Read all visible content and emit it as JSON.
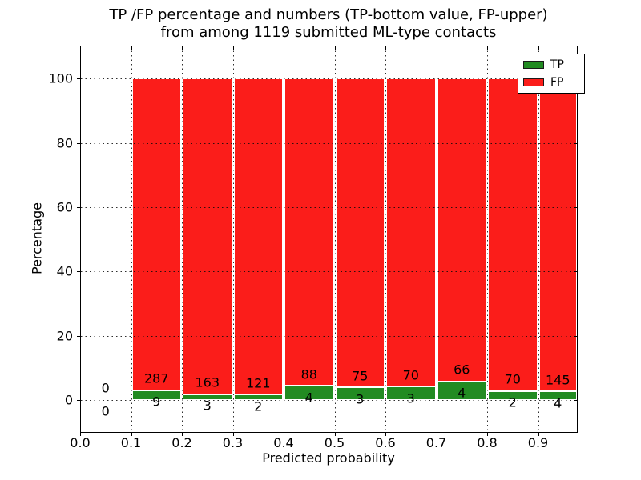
{
  "title": {
    "line1": "TP /FP percentage and numbers (TP-bottom value, FP-upper)",
    "line2": "from among 1119 submitted ML-type contacts"
  },
  "axes": {
    "ylabel": "Percentage",
    "xlabel": "Predicted probability",
    "yticks": [
      {
        "value": 0,
        "label": "0"
      },
      {
        "value": 20,
        "label": "20"
      },
      {
        "value": 40,
        "label": "40"
      },
      {
        "value": 60,
        "label": "60"
      },
      {
        "value": 80,
        "label": "80"
      },
      {
        "value": 100,
        "label": "100"
      }
    ],
    "xticks": [
      {
        "value": 0.0,
        "label": "0.0"
      },
      {
        "value": 0.1,
        "label": "0.1"
      },
      {
        "value": 0.2,
        "label": "0.2"
      },
      {
        "value": 0.3,
        "label": "0.3"
      },
      {
        "value": 0.4,
        "label": "0.4"
      },
      {
        "value": 0.5,
        "label": "0.5"
      },
      {
        "value": 0.6,
        "label": "0.6"
      },
      {
        "value": 0.7,
        "label": "0.7"
      },
      {
        "value": 0.8,
        "label": "0.8"
      },
      {
        "value": 0.9,
        "label": "0.9"
      }
    ]
  },
  "legend": {
    "entries": [
      {
        "label": "TP",
        "color": "#228b22"
      },
      {
        "label": "FP",
        "color": "#fb1d1a"
      }
    ]
  },
  "chart_data": {
    "type": "bar",
    "stacked": true,
    "normalized_to_percent": true,
    "title": "TP /FP percentage and numbers (TP-bottom value, FP-upper) from among 1119 submitted ML-type contacts",
    "xlabel": "Predicted probability",
    "ylabel": "Percentage",
    "total_contacts": 1119,
    "bin_edges": [
      0.0,
      0.1,
      0.2,
      0.3,
      0.4,
      0.5,
      0.6,
      0.7,
      0.8,
      0.9,
      1.0
    ],
    "series": [
      {
        "name": "TP",
        "color": "#228b22",
        "counts": [
          0,
          9,
          3,
          2,
          4,
          3,
          3,
          4,
          2,
          4
        ]
      },
      {
        "name": "FP",
        "color": "#fb1d1a",
        "counts": [
          0,
          287,
          163,
          121,
          88,
          75,
          70,
          66,
          70,
          145
        ]
      }
    ],
    "bar_value_note": "each non-empty bin is drawn as TP% = TP/(TP+FP)*100 stacked below FP% = 100-TP%; count labels printed near each bar (TP below, FP above)",
    "ylim": [
      -10,
      110
    ],
    "xlim": [
      0.0,
      0.9765
    ],
    "grid": "dotted, drawn above bars",
    "legend_position": "upper right"
  }
}
